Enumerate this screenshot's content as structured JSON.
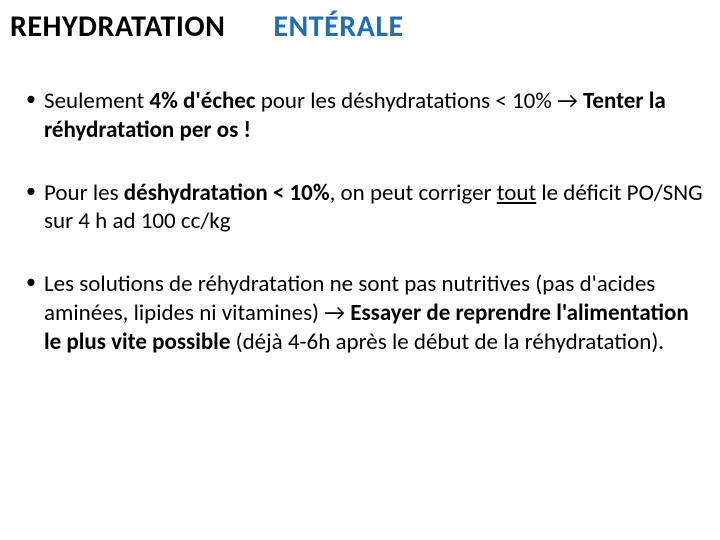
{
  "title": {
    "part1": "REHYDRATATION",
    "part2": "ENTÉRALE",
    "part1_color": "#000000",
    "part2_color": "#1f6fb5",
    "fontsize": 30,
    "font_weight": 700
  },
  "bullets": [
    {
      "runs": [
        {
          "text": "Seulement ",
          "bold": false
        },
        {
          "text": "4% d'échec ",
          "bold": true
        },
        {
          "text": "pour les déshydratations < 10% ",
          "bold": false
        },
        {
          "text": "→",
          "bold": false
        },
        {
          "text": " Tenter la réhydratation per os !",
          "bold": true
        }
      ]
    },
    {
      "runs": [
        {
          "text": "Pour les ",
          "bold": false
        },
        {
          "text": "déshydratation < 10%",
          "bold": true
        },
        {
          "text": ", on peut corriger ",
          "bold": false
        },
        {
          "text": "tout",
          "bold": false,
          "underline": true
        },
        {
          "text": " le déficit PO/SNG sur 4 h ad 100 cc/kg",
          "bold": false
        }
      ]
    },
    {
      "runs": [
        {
          "text": "Les solutions de réhydratation ne sont pas nutritives (pas d'acides aminées, lipides ni vitamines) ",
          "bold": false
        },
        {
          "text": "→",
          "bold": false
        },
        {
          "text": " Essayer de reprendre l'alimentation le plus vite possible ",
          "bold": true
        },
        {
          "text": "(déjà 4-6h après le début de la réhydratation).",
          "bold": false
        }
      ]
    }
  ],
  "style": {
    "background_color": "#ffffff",
    "text_color": "#000000",
    "bullet_fontsize": 23,
    "line_height": 1.25,
    "bullet_spacing": 34,
    "font_family": "Calibri"
  }
}
